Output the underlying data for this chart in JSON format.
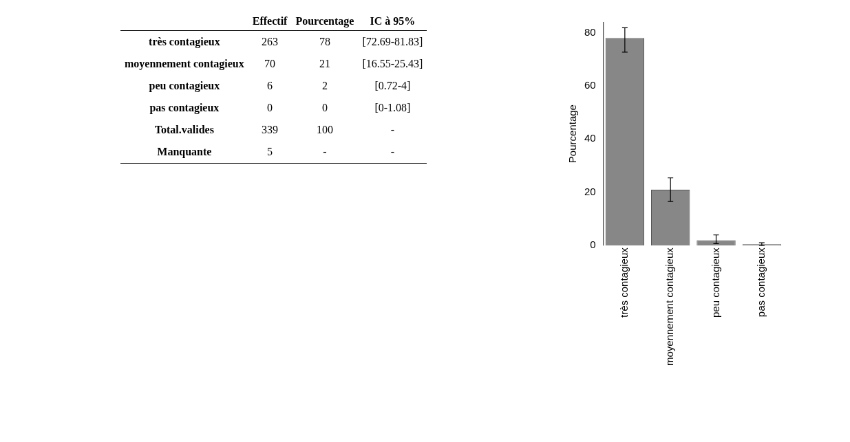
{
  "chart_data": [
    {
      "type": "other",
      "annotations": [
        "Effectif",
        "Pourcentage",
        "IC à 95%",
        "très contagieux",
        "263",
        "78",
        "[72.69-81.83]",
        "moyennement contagieux",
        "70",
        "21",
        "[16.55-25.43]",
        "peu contagieux",
        "6",
        "2",
        "[0.72-4]",
        "pas contagieux",
        "0",
        "0",
        "[0-1.08]",
        "Total.valides",
        "339",
        "100",
        "-",
        "Manquante",
        "5",
        "-",
        "-"
      ]
    },
    {
      "type": "bar",
      "ylabel": "Pourcentage",
      "categories": [
        "très contagieux",
        "moyennement contagieux",
        "peu contagieux",
        "pas contagieux"
      ],
      "values": [
        78,
        21,
        2,
        0
      ],
      "color": "#878787",
      "errors": [
        [
          72.69,
          81.83
        ],
        [
          16.55,
          25.43
        ],
        [
          0.72,
          4
        ],
        [
          0,
          1.08
        ]
      ],
      "ylim": [
        0,
        84
      ],
      "yticks": [
        0,
        20,
        40,
        60,
        80
      ],
      "grid": false,
      "legend": false
    }
  ]
}
